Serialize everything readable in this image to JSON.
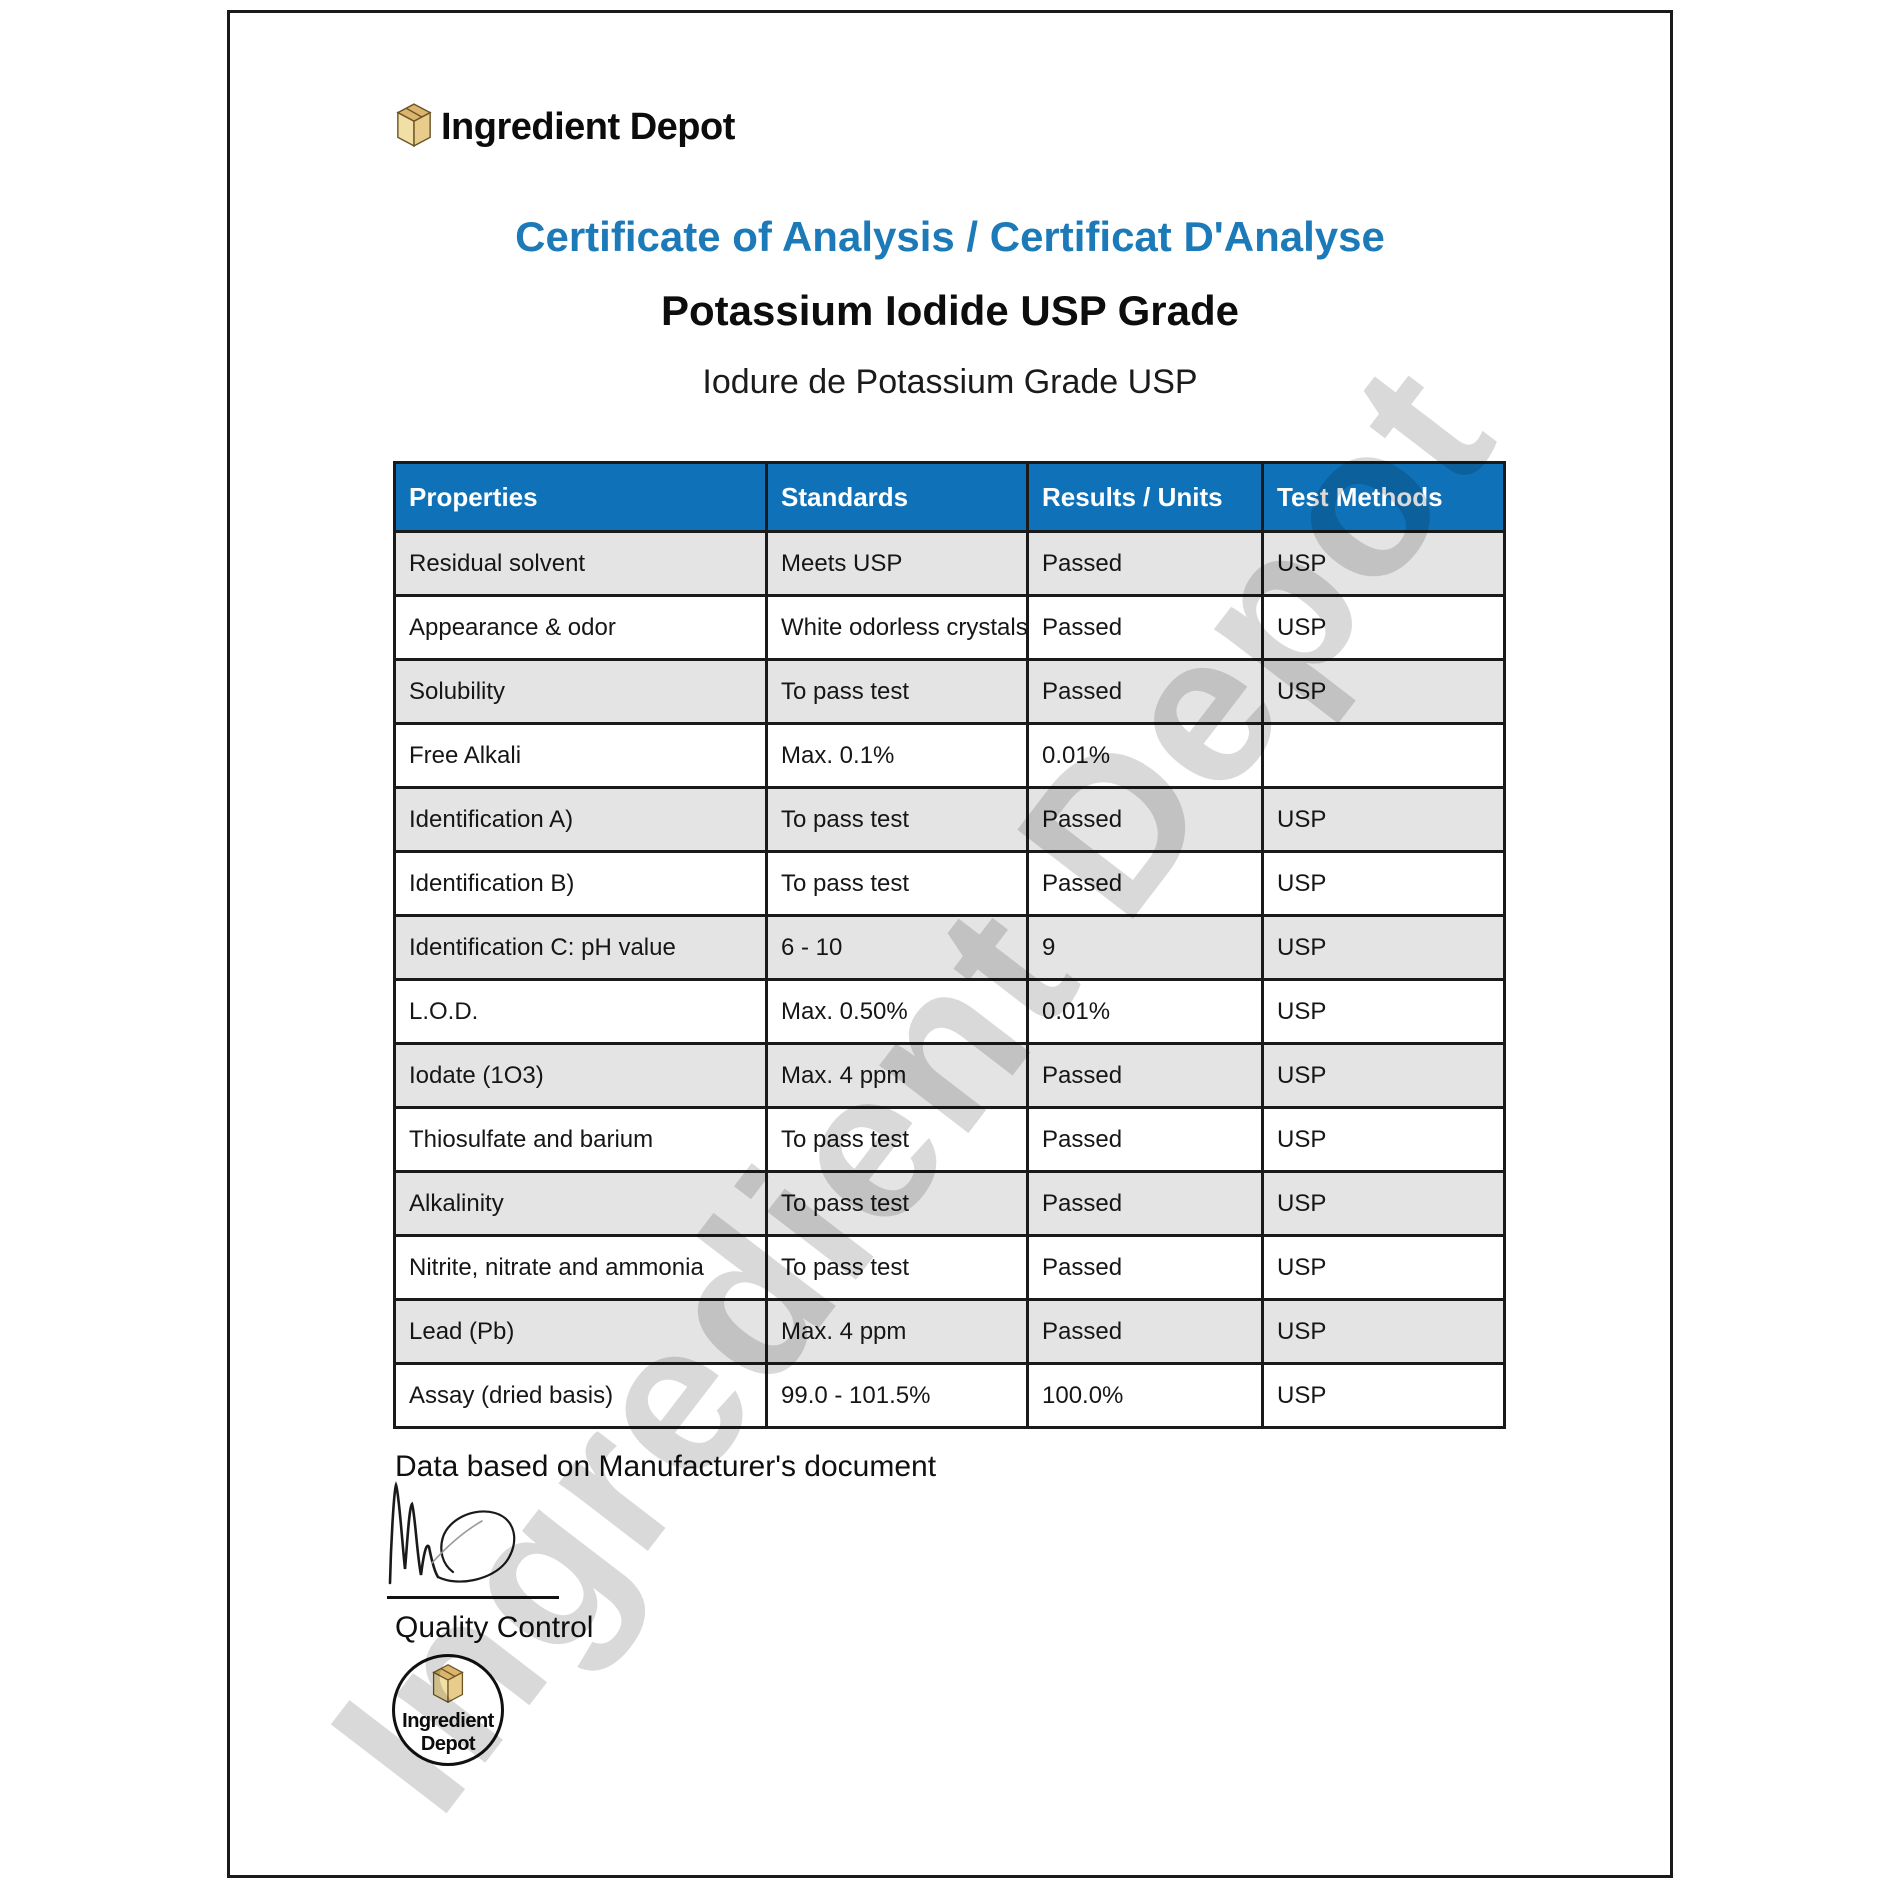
{
  "brand": {
    "name": "Ingredient Depot"
  },
  "heading": {
    "title": "Certificate of Analysis / Certificat D'Analyse",
    "product": "Potassium Iodide USP Grade",
    "product_fr": "Iodure de Potassium Grade USP"
  },
  "watermark": "Ingredient Depot",
  "colors": {
    "title_blue": "#1C7AB8",
    "header_blue": "#0F72B8",
    "header_text": "#FFFFFF",
    "row_shade": "#E4E4E4",
    "row_plain": "#FFFFFF",
    "border": "#1A1A1A",
    "box_icon_tan": "#E8CC8C"
  },
  "table": {
    "columns": [
      "Properties",
      "Standards",
      "Results / Units",
      "Test Methods"
    ],
    "rows": [
      [
        "Residual solvent",
        "Meets USP",
        "Passed",
        "USP"
      ],
      [
        "Appearance & odor",
        "White odorless crystals",
        "Passed",
        "USP"
      ],
      [
        "Solubility",
        "To pass test",
        "Passed",
        "USP"
      ],
      [
        "Free Alkali",
        "Max. 0.1%",
        "0.01%",
        ""
      ],
      [
        "Identification A)",
        "To pass test",
        "Passed",
        "USP"
      ],
      [
        "Identification B)",
        "To pass test",
        "Passed",
        "USP"
      ],
      [
        "Identification C: pH value",
        "6 - 10",
        "9",
        "USP"
      ],
      [
        "L.O.D.",
        "Max. 0.50%",
        "0.01%",
        "USP"
      ],
      [
        "Iodate (1O3)",
        "Max. 4 ppm",
        "Passed",
        "USP"
      ],
      [
        "Thiosulfate and barium",
        "To pass test",
        "Passed",
        "USP"
      ],
      [
        "Alkalinity",
        "To pass test",
        "Passed",
        "USP"
      ],
      [
        "Nitrite, nitrate and ammonia",
        "To pass test",
        "Passed",
        "USP"
      ],
      [
        "Lead (Pb)",
        "Max. 4 ppm",
        "Passed",
        "USP"
      ],
      [
        "Assay (dried basis)",
        "99.0 - 101.5%",
        "100.0%",
        "USP"
      ]
    ]
  },
  "footer": {
    "note": "Data based on Manufacturer's document",
    "signed_by": "Quality Control",
    "stamp": {
      "line1": "Ingredient",
      "line2": "Depot"
    }
  }
}
